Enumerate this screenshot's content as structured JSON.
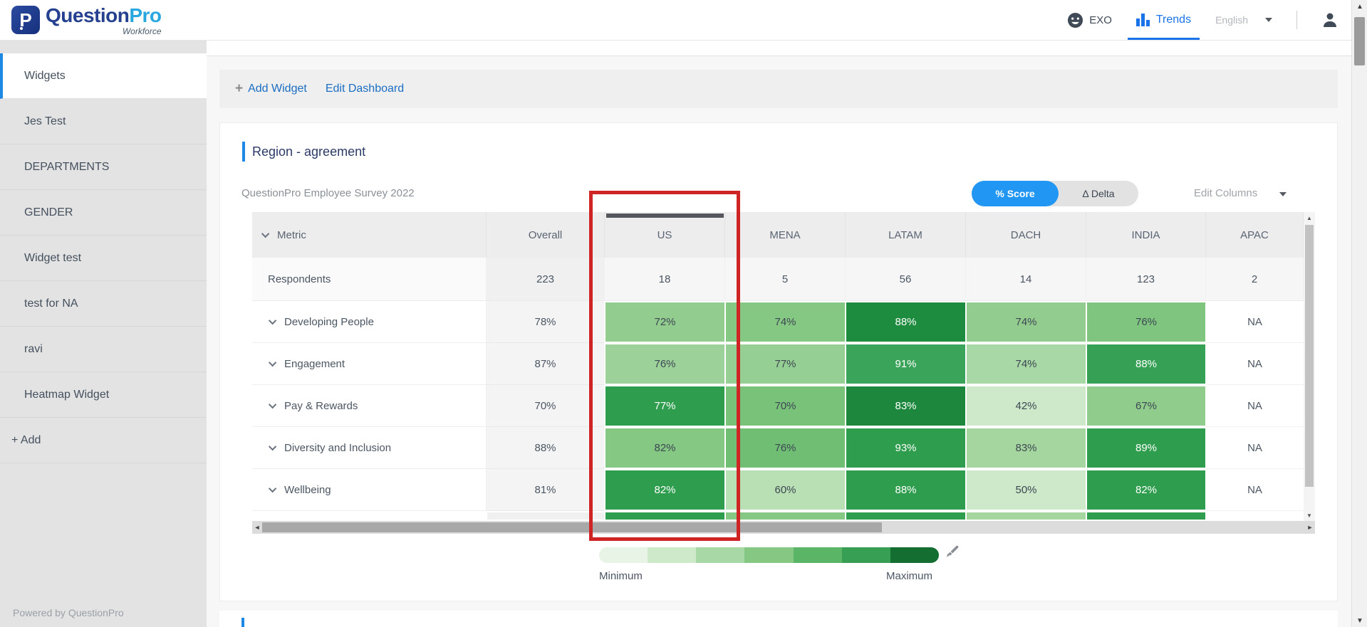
{
  "header": {
    "logo": {
      "brand_primary": "Question",
      "brand_secondary": "Pro",
      "sub_brand": "Workforce",
      "icon_letter": "P"
    },
    "nav": {
      "exo_label": "EXO",
      "trends_label": "Trends",
      "language": "English"
    }
  },
  "sidebar": {
    "items": [
      {
        "label": "Widgets",
        "active": true
      },
      {
        "label": "Jes Test",
        "active": false
      },
      {
        "label": "DEPARTMENTS",
        "active": false
      },
      {
        "label": "GENDER",
        "active": false
      },
      {
        "label": "Widget test",
        "active": false
      },
      {
        "label": "test for NA",
        "active": false
      },
      {
        "label": "ravi",
        "active": false
      },
      {
        "label": "Heatmap Widget",
        "active": false
      }
    ],
    "add_label": "+ Add",
    "footer": "Powered by QuestionPro"
  },
  "toolbar": {
    "add_widget": "Add Widget",
    "edit_dashboard": "Edit Dashboard",
    "plus": "+"
  },
  "widget": {
    "title": "Region - agreement",
    "subtitle": "QuestionPro Employee Survey 2022",
    "toggle": {
      "score_label": "% Score",
      "delta_label": "Δ Delta",
      "active": "% Score",
      "active_color": "#2196f3"
    },
    "edit_columns_label": "Edit Columns",
    "legend": {
      "min_label": "Minimum",
      "max_label": "Maximum",
      "colors": [
        "#e8f4e5",
        "#cde9ca",
        "#a8d8a5",
        "#85c884",
        "#5bb567",
        "#379f53",
        "#156e31"
      ]
    },
    "highlight_color": "#ce2424",
    "accent_color": "#1e88e5"
  },
  "chart_data": {
    "type": "heatmap",
    "title": "Region - agreement",
    "subtitle": "QuestionPro Employee Survey 2022",
    "columns": [
      "Metric",
      "Overall",
      "US",
      "MENA",
      "LATAM",
      "DACH",
      "INDIA",
      "APAC"
    ],
    "highlighted_column": "US",
    "respondents": {
      "label": "Respondents",
      "values": [
        "223",
        "18",
        "5",
        "56",
        "14",
        "123",
        "2"
      ]
    },
    "rows": [
      {
        "metric": "Developing People",
        "overall": "78%",
        "cells": [
          {
            "region": "US",
            "value": "72%",
            "bg": "#92cd8f",
            "fg": "#3d4752"
          },
          {
            "region": "MENA",
            "value": "74%",
            "bg": "#85c884",
            "fg": "#3d4752"
          },
          {
            "region": "LATAM",
            "value": "88%",
            "bg": "#1e8c3f",
            "fg": "#ffffff"
          },
          {
            "region": "DACH",
            "value": "74%",
            "bg": "#92cd8f",
            "fg": "#3d4752"
          },
          {
            "region": "INDIA",
            "value": "76%",
            "bg": "#7fc57f",
            "fg": "#3d4752"
          },
          {
            "region": "APAC",
            "value": "NA",
            "na": true
          }
        ]
      },
      {
        "metric": "Engagement",
        "overall": "87%",
        "cells": [
          {
            "region": "US",
            "value": "76%",
            "bg": "#9cd29a",
            "fg": "#3d4752"
          },
          {
            "region": "MENA",
            "value": "77%",
            "bg": "#95cf93",
            "fg": "#3d4752"
          },
          {
            "region": "LATAM",
            "value": "91%",
            "bg": "#3aa45a",
            "fg": "#ffffff"
          },
          {
            "region": "DACH",
            "value": "74%",
            "bg": "#a8d8a5",
            "fg": "#3d4752"
          },
          {
            "region": "INDIA",
            "value": "88%",
            "bg": "#36a055",
            "fg": "#ffffff"
          },
          {
            "region": "APAC",
            "value": "NA",
            "na": true
          }
        ]
      },
      {
        "metric": "Pay & Rewards",
        "overall": "70%",
        "cells": [
          {
            "region": "US",
            "value": "77%",
            "bg": "#2f9d4e",
            "fg": "#ffffff"
          },
          {
            "region": "MENA",
            "value": "70%",
            "bg": "#79c27a",
            "fg": "#3d4752"
          },
          {
            "region": "LATAM",
            "value": "83%",
            "bg": "#1d883d",
            "fg": "#ffffff"
          },
          {
            "region": "DACH",
            "value": "42%",
            "bg": "#cde9ca",
            "fg": "#3d4752"
          },
          {
            "region": "INDIA",
            "value": "67%",
            "bg": "#90cd8d",
            "fg": "#3d4752"
          },
          {
            "region": "APAC",
            "value": "NA",
            "na": true
          }
        ]
      },
      {
        "metric": "Diversity and Inclusion",
        "overall": "88%",
        "cells": [
          {
            "region": "US",
            "value": "82%",
            "bg": "#85c884",
            "fg": "#3d4752"
          },
          {
            "region": "MENA",
            "value": "76%",
            "bg": "#6fbe74",
            "fg": "#3d4752"
          },
          {
            "region": "LATAM",
            "value": "93%",
            "bg": "#2f9d4e",
            "fg": "#ffffff"
          },
          {
            "region": "DACH",
            "value": "83%",
            "bg": "#a5d6a0",
            "fg": "#3d4752"
          },
          {
            "region": "INDIA",
            "value": "89%",
            "bg": "#2f9d4e",
            "fg": "#ffffff"
          },
          {
            "region": "APAC",
            "value": "NA",
            "na": true
          }
        ]
      },
      {
        "metric": "Wellbeing",
        "overall": "81%",
        "cells": [
          {
            "region": "US",
            "value": "82%",
            "bg": "#2f9d4e",
            "fg": "#ffffff"
          },
          {
            "region": "MENA",
            "value": "60%",
            "bg": "#b9e0b4",
            "fg": "#3d4752"
          },
          {
            "region": "LATAM",
            "value": "88%",
            "bg": "#2f9d4e",
            "fg": "#ffffff"
          },
          {
            "region": "DACH",
            "value": "50%",
            "bg": "#cde9ca",
            "fg": "#3d4752"
          },
          {
            "region": "INDIA",
            "value": "82%",
            "bg": "#2f9d4e",
            "fg": "#ffffff"
          },
          {
            "region": "APAC",
            "value": "NA",
            "na": true
          }
        ]
      }
    ],
    "partial_next_row_colors": [
      "#f0f0f0",
      "#2f9d4e",
      "#85c884",
      "#2f9d4e",
      "#a5d6a0",
      "#2f9d4e",
      "#ffffff"
    ],
    "legend": {
      "min_label": "Minimum",
      "max_label": "Maximum"
    }
  }
}
